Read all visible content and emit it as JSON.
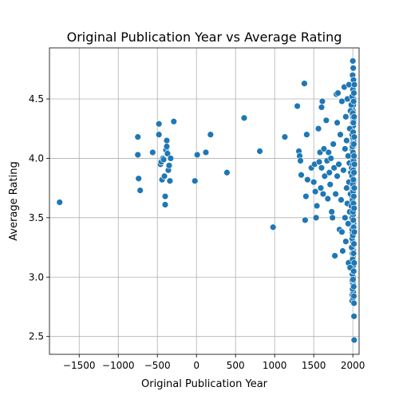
{
  "chart_data": {
    "type": "scatter",
    "title": "Original Publication Year vs Average Rating",
    "xlabel": "Original Publication Year",
    "ylabel": "Average Rating",
    "xlim": [
      -1880,
      2080
    ],
    "ylim": [
      2.35,
      4.93
    ],
    "xticks": [
      -1500,
      -1000,
      -500,
      0,
      500,
      1000,
      1500,
      2000
    ],
    "xtick_labels": [
      "−1500",
      "−1000",
      "−500",
      "0",
      "500",
      "1000",
      "1500",
      "2000"
    ],
    "yticks": [
      2.5,
      3.0,
      3.5,
      4.0,
      4.5
    ],
    "ytick_labels": [
      "2.5",
      "3.0",
      "3.5",
      "4.0",
      "4.5"
    ],
    "grid": true,
    "color": "#1f77b4",
    "points": [
      [
        -1750,
        3.63
      ],
      [
        -750,
        4.18
      ],
      [
        -750,
        4.03
      ],
      [
        -740,
        3.83
      ],
      [
        -720,
        3.73
      ],
      [
        -560,
        4.05
      ],
      [
        -480,
        4.29
      ],
      [
        -480,
        4.2
      ],
      [
        -460,
        3.95
      ],
      [
        -450,
        3.97
      ],
      [
        -440,
        3.82
      ],
      [
        -430,
        4.0
      ],
      [
        -420,
        3.99
      ],
      [
        -410,
        3.85
      ],
      [
        -400,
        3.61
      ],
      [
        -400,
        3.68
      ],
      [
        -390,
        4.07
      ],
      [
        -380,
        4.15
      ],
      [
        -380,
        4.1
      ],
      [
        -370,
        4.04
      ],
      [
        -360,
        3.9
      ],
      [
        -350,
        3.94
      ],
      [
        -340,
        3.81
      ],
      [
        -330,
        4.0
      ],
      [
        -290,
        4.31
      ],
      [
        -20,
        3.81
      ],
      [
        10,
        4.03
      ],
      [
        120,
        4.05
      ],
      [
        180,
        4.2
      ],
      [
        390,
        3.88
      ],
      [
        610,
        4.34
      ],
      [
        810,
        4.06
      ],
      [
        980,
        3.42
      ],
      [
        1130,
        4.18
      ],
      [
        1290,
        4.44
      ],
      [
        1310,
        4.06
      ],
      [
        1320,
        4.02
      ],
      [
        1330,
        3.98
      ],
      [
        1340,
        3.86
      ],
      [
        1380,
        4.63
      ],
      [
        1390,
        3.48
      ],
      [
        1400,
        3.68
      ],
      [
        1410,
        4.2
      ],
      [
        1420,
        3.82
      ],
      [
        1470,
        3.92
      ],
      [
        1500,
        3.8
      ],
      [
        1510,
        3.95
      ],
      [
        1520,
        3.72
      ],
      [
        1530,
        3.5
      ],
      [
        1540,
        3.6
      ],
      [
        1560,
        4.25
      ],
      [
        1570,
        3.97
      ],
      [
        1580,
        4.05
      ],
      [
        1590,
        3.75
      ],
      [
        1600,
        4.43
      ],
      [
        1600,
        3.92
      ],
      [
        1610,
        4.48
      ],
      [
        1620,
        3.7
      ],
      [
        1630,
        4.08
      ],
      [
        1640,
        3.85
      ],
      [
        1660,
        4.32
      ],
      [
        1670,
        3.98
      ],
      [
        1680,
        3.66
      ],
      [
        1690,
        4.05
      ],
      [
        1700,
        3.88
      ],
      [
        1710,
        3.78
      ],
      [
        1720,
        4.0
      ],
      [
        1730,
        3.55
      ],
      [
        1740,
        3.5
      ],
      [
        1750,
        4.12
      ],
      [
        1760,
        3.92
      ],
      [
        1770,
        3.18
      ],
      [
        1780,
        3.7
      ],
      [
        1790,
        4.54
      ],
      [
        1800,
        4.3
      ],
      [
        1800,
        3.85
      ],
      [
        1810,
        4.55
      ],
      [
        1820,
        3.95
      ],
      [
        1830,
        3.4
      ],
      [
        1840,
        4.2
      ],
      [
        1850,
        3.65
      ],
      [
        1860,
        4.48
      ],
      [
        1860,
        3.38
      ],
      [
        1870,
        3.22
      ],
      [
        1880,
        3.9
      ],
      [
        1890,
        4.6
      ],
      [
        1900,
        4.08
      ],
      [
        1900,
        3.5
      ],
      [
        1910,
        4.35
      ],
      [
        1910,
        3.3
      ],
      [
        1920,
        4.15
      ],
      [
        1920,
        3.75
      ],
      [
        1930,
        4.5
      ],
      [
        1930,
        3.62
      ],
      [
        1940,
        4.02
      ],
      [
        1940,
        3.45
      ],
      [
        1945,
        3.12
      ],
      [
        1950,
        4.62
      ],
      [
        1950,
        3.8
      ],
      [
        1955,
        3.96
      ],
      [
        1960,
        4.25
      ],
      [
        1960,
        3.55
      ],
      [
        1965,
        3.08
      ],
      [
        1970,
        4.4
      ],
      [
        1970,
        3.7
      ],
      [
        1975,
        3.88
      ],
      [
        1980,
        4.45
      ],
      [
        1980,
        3.6
      ],
      [
        1985,
        3.92
      ],
      [
        1985,
        3.25
      ],
      [
        1990,
        4.52
      ],
      [
        1990,
        3.85
      ],
      [
        1992,
        3.4
      ],
      [
        1995,
        4.1
      ],
      [
        1995,
        3.65
      ],
      [
        1997,
        4.7
      ],
      [
        1998,
        3.95
      ],
      [
        1998,
        3.15
      ],
      [
        2000,
        4.82
      ],
      [
        2000,
        4.38
      ],
      [
        2000,
        3.78
      ],
      [
        2000,
        3.35
      ],
      [
        2001,
        4.58
      ],
      [
        2002,
        4.05
      ],
      [
        2002,
        3.55
      ],
      [
        2003,
        2.98
      ],
      [
        2004,
        4.22
      ],
      [
        2004,
        3.72
      ],
      [
        2005,
        4.76
      ],
      [
        2005,
        3.9
      ],
      [
        2006,
        3.48
      ],
      [
        2007,
        4.3
      ],
      [
        2007,
        3.82
      ],
      [
        2008,
        4.66
      ],
      [
        2008,
        3.62
      ],
      [
        2009,
        3.2
      ],
      [
        2010,
        4.48
      ],
      [
        2010,
        3.98
      ],
      [
        2010,
        3.42
      ],
      [
        2011,
        3.05
      ],
      [
        2011,
        2.92
      ],
      [
        2012,
        4.12
      ],
      [
        2012,
        3.68
      ],
      [
        2013,
        2.84
      ],
      [
        2013,
        4.55
      ],
      [
        2014,
        3.88
      ],
      [
        2014,
        3.28
      ],
      [
        2015,
        2.78
      ],
      [
        2015,
        4.02
      ],
      [
        2015,
        2.67
      ],
      [
        2016,
        4.35
      ],
      [
        2016,
        3.58
      ],
      [
        2017,
        3.12
      ],
      [
        2017,
        2.47
      ],
      [
        2018,
        4.18
      ],
      [
        2018,
        3.75
      ],
      [
        2019,
        4.62
      ],
      [
        2019,
        3.38
      ],
      [
        2020,
        3.95
      ]
    ]
  }
}
